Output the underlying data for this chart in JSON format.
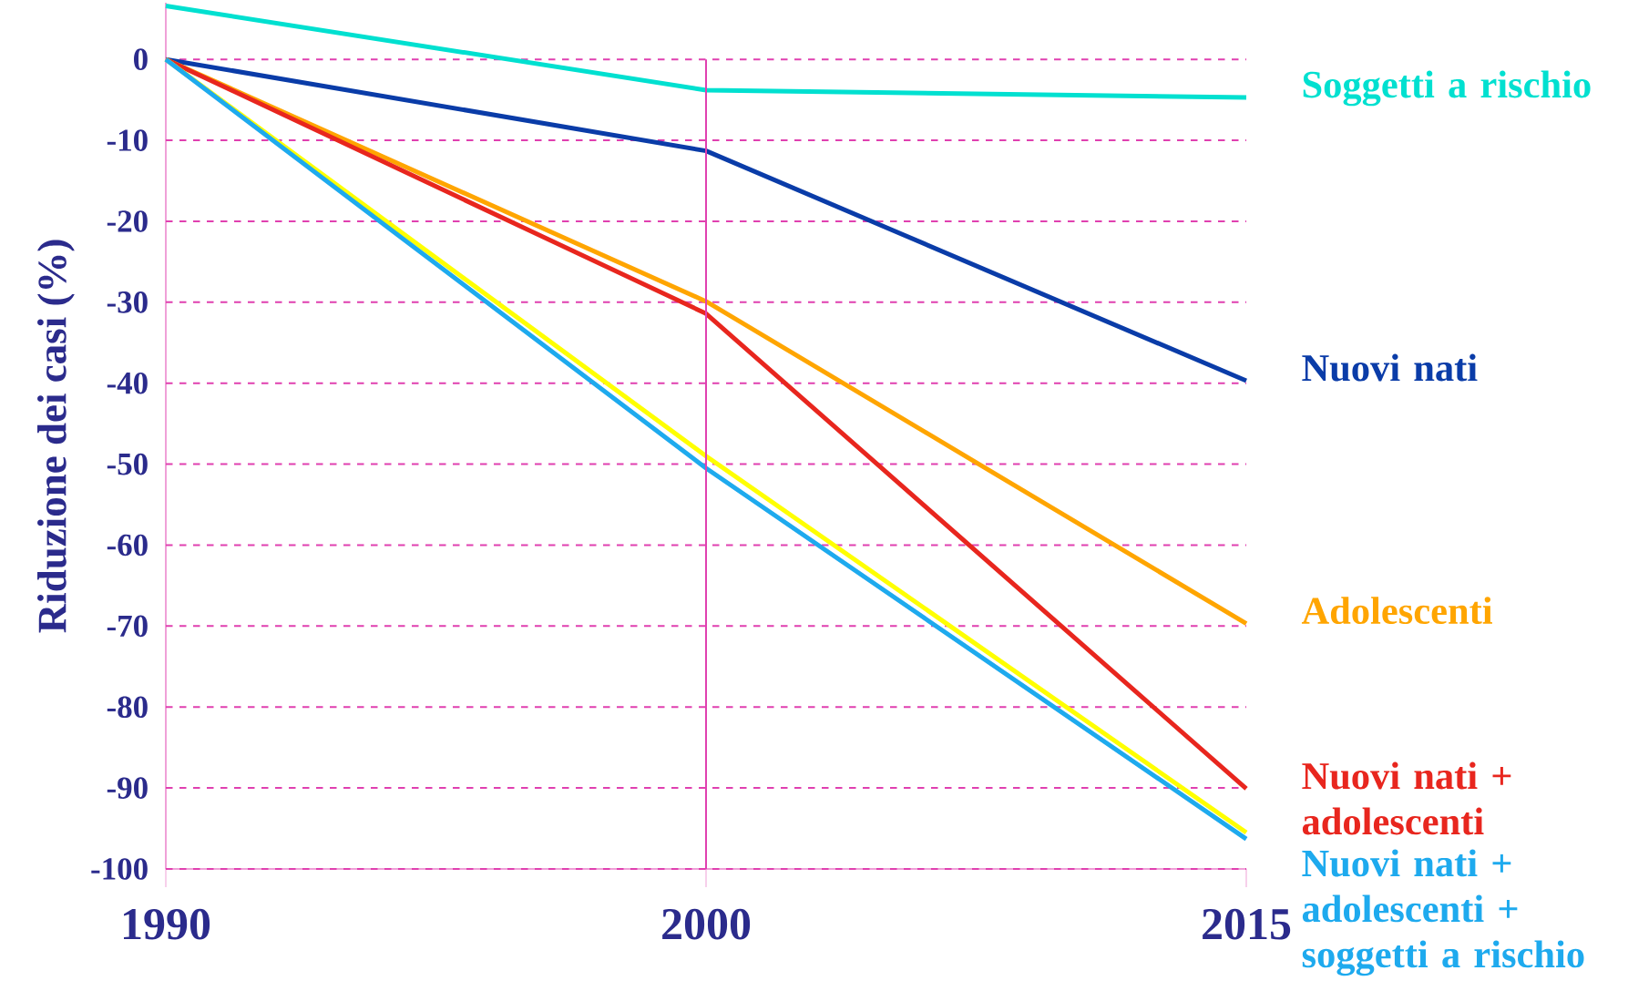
{
  "chart_data": {
    "type": "line",
    "ylabel": "Riduzione dei casi (%)",
    "categories": [
      "1990",
      "2000",
      "2015"
    ],
    "ylim": [
      -100,
      7
    ],
    "yticks": [
      0,
      -10,
      -20,
      -30,
      -40,
      -50,
      -60,
      -70,
      -80,
      -90,
      -100
    ],
    "grid": "y",
    "ref_lines": [
      {
        "axis": "x",
        "value": "2000",
        "color": "#e040b0",
        "line_style": "solid"
      }
    ],
    "marker": "none",
    "line_style": "solid",
    "series": [
      {
        "name": "Soggetti a rischio",
        "color": "#00e0d0",
        "values": [
          6.6,
          -3.8,
          -4.7
        ]
      },
      {
        "name": "Nuovi nati",
        "color": "#0a3ca8",
        "values": [
          0,
          -11.3,
          -39.7
        ]
      },
      {
        "name": "Adolescenti",
        "color": "#ffa500",
        "values": [
          0,
          -29.9,
          -69.7
        ]
      },
      {
        "name": "Nuovi nati + adolescenti",
        "color": "#e8261e",
        "values": [
          0,
          -31.4,
          -90.1
        ]
      },
      {
        "color": "#ffff00",
        "values": [
          0,
          -49,
          -95.5
        ]
      },
      {
        "name": "Nuovi nati + adolescenti + soggetti a rischio",
        "color": "#1eaaee",
        "values": [
          0,
          -50.5,
          -96.3
        ]
      }
    ]
  }
}
